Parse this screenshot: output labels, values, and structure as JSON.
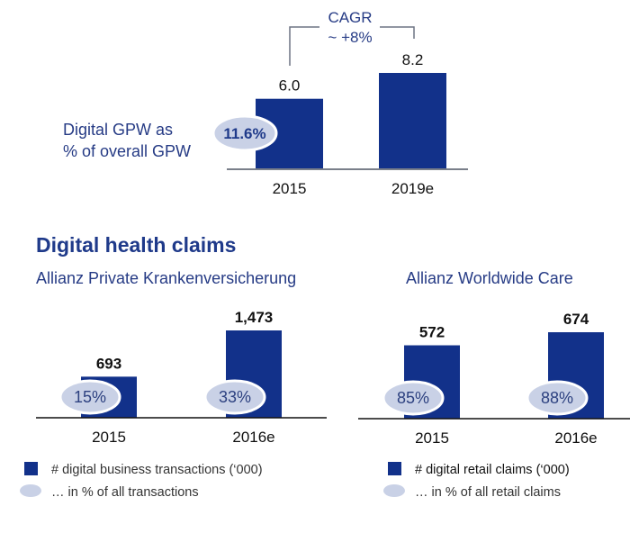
{
  "chart_data": [
    {
      "type": "bar",
      "name": "Digital GPW",
      "categories": [
        "2015",
        "2019e"
      ],
      "values": [
        6.0,
        8.2
      ],
      "value_labels": [
        "6.0",
        "8.2"
      ],
      "annotation": {
        "label_line1": "Digital GPW as",
        "label_line2": "% of overall GPW",
        "badges": [
          "11.6%"
        ]
      },
      "cagr": {
        "title": "CAGR",
        "value": "~ +8%"
      },
      "bar_color": "#12318a",
      "badge_color": "#c9d1e6"
    },
    {
      "type": "bar",
      "title": "Allianz Private Krankenversicherung",
      "categories": [
        "2015",
        "2016e"
      ],
      "values": [
        693,
        1473
      ],
      "value_labels": [
        "693",
        "1,473"
      ],
      "percentages": [
        "15%",
        "33%"
      ],
      "legend": [
        "# digital business transactions (‘000)",
        "… in % of all transactions"
      ],
      "bar_color": "#12318a",
      "badge_color": "#c9d1e6"
    },
    {
      "type": "bar",
      "title": "Allianz Worldwide Care",
      "categories": [
        "2015",
        "2016e"
      ],
      "values": [
        572,
        674
      ],
      "value_labels": [
        "572",
        "674"
      ],
      "percentages": [
        "85%",
        "88%"
      ],
      "legend": [
        "# digital retail claims (‘000)",
        "… in % of all retail claims"
      ],
      "bar_color": "#12318a",
      "badge_color": "#c9d1e6"
    }
  ],
  "section_title": "Digital health claims"
}
